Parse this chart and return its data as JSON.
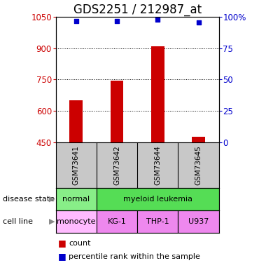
{
  "title": "GDS2251 / 212987_at",
  "samples": [
    "GSM73641",
    "GSM73642",
    "GSM73644",
    "GSM73645"
  ],
  "count_values": [
    650,
    745,
    910,
    475
  ],
  "percentile_values": [
    97,
    97,
    98,
    96
  ],
  "ylim_left": [
    450,
    1050
  ],
  "ylim_right": [
    0,
    100
  ],
  "yticks_left": [
    450,
    600,
    750,
    900,
    1050
  ],
  "yticks_right": [
    0,
    25,
    50,
    75,
    100
  ],
  "ytick_labels_right": [
    "0",
    "25",
    "50",
    "75",
    "100%"
  ],
  "bar_color": "#cc0000",
  "point_color": "#0000cc",
  "disease_normal_color": "#88ee88",
  "disease_leukemia_color": "#55dd55",
  "cell_monocyte_color": "#ffbbff",
  "cell_other_color": "#ee88ee",
  "sample_bg_color": "#c8c8c8",
  "title_fontsize": 12,
  "axis_fontsize": 8.5,
  "legend_fontsize": 8,
  "row_label_fontsize": 8
}
